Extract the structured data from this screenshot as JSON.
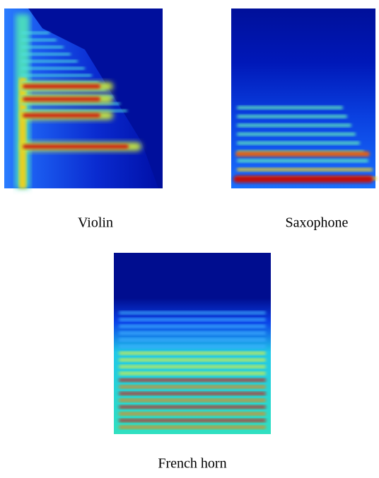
{
  "figure": {
    "panels": [
      {
        "caption": "Violin"
      },
      {
        "caption": "Saxophone"
      },
      {
        "caption": "French horn"
      }
    ]
  }
}
